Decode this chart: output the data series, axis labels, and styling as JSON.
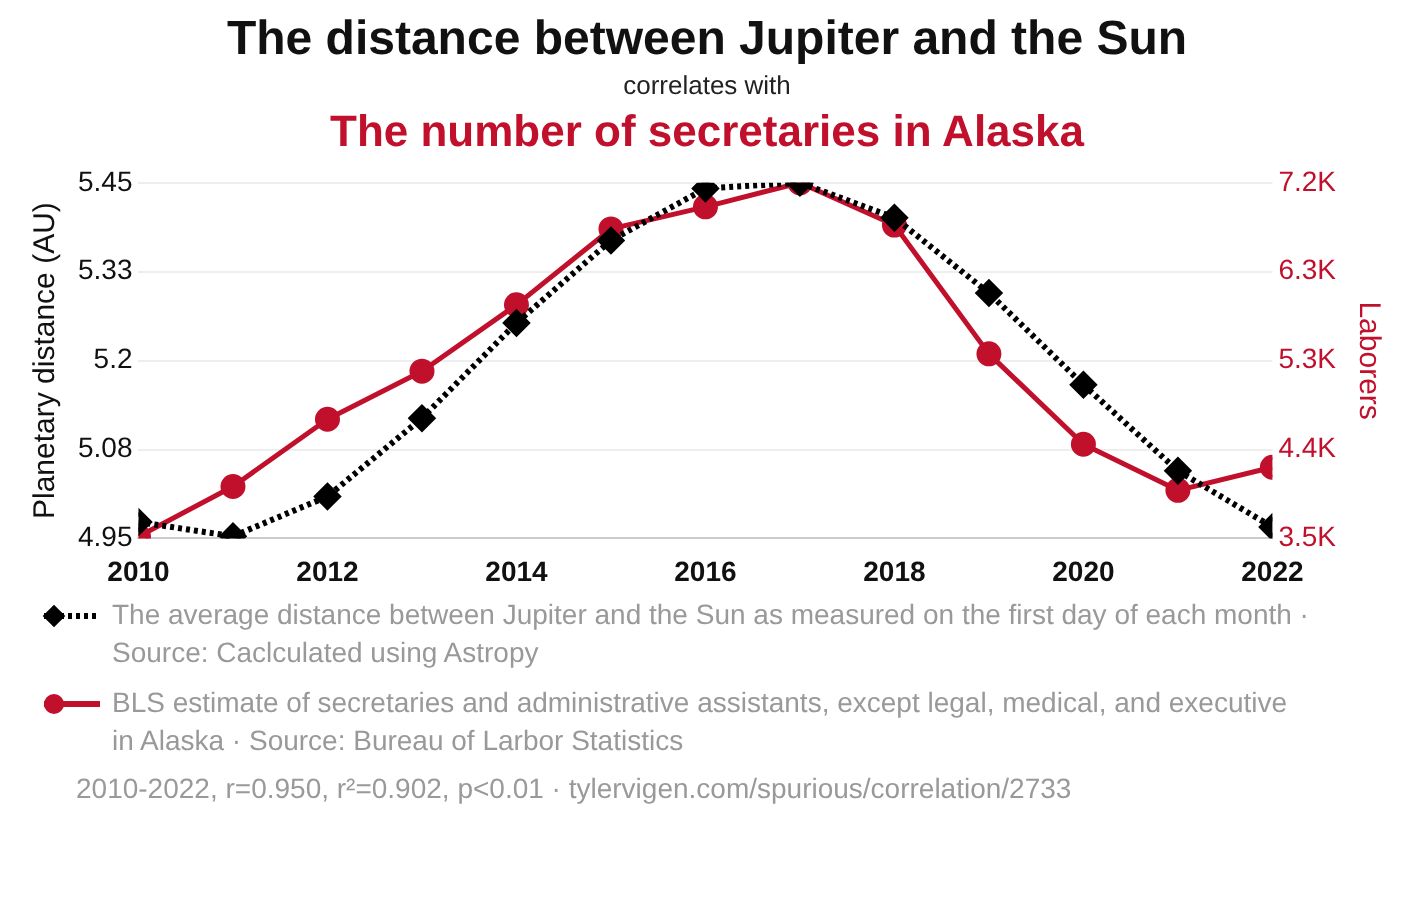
{
  "chart_data": {
    "type": "line",
    "title": "The distance between Jupiter and the Sun",
    "subtitle": "correlates with",
    "ylabel": "Planetary distance (AU)",
    "y2label": "Laborers",
    "x": [
      2010,
      2011,
      2012,
      2013,
      2014,
      2015,
      2016,
      2017,
      2018,
      2019,
      2020,
      2021,
      2022
    ],
    "xlim": [
      2010,
      2022
    ],
    "xticks": [
      2010,
      2012,
      2014,
      2016,
      2018,
      2020,
      2022
    ],
    "ylim": [
      4.95,
      5.45
    ],
    "yticks": [
      4.95,
      {
        "value": 5.075,
        "label": "5.08"
      },
      5.2,
      {
        "value": 5.325,
        "label": "5.33"
      },
      5.45
    ],
    "y2lim": [
      3500,
      7200
    ],
    "y2ticks": [
      {
        "value": 3500,
        "label": "3.5K"
      },
      {
        "value": 4425,
        "label": "4.4K"
      },
      {
        "value": 5350,
        "label": "5.3K"
      },
      {
        "value": 6275,
        "label": "6.3K"
      },
      {
        "value": 7200,
        "label": "7.2K"
      }
    ],
    "series": [
      {
        "name": "The average distance between Jupiter and the Sun as measured on the first day of each month · Source: Caclculated using Astropy",
        "color": "#000000",
        "marker": "diamond",
        "line_style": "dotted",
        "values": [
          4.973,
          4.953,
          5.009,
          5.119,
          5.253,
          5.369,
          5.442,
          5.45,
          5.401,
          5.295,
          5.166,
          5.045,
          4.966
        ]
      },
      {
        "name": "BLS estimate of secretaries and administrative assistants, except legal, medical, and executive in Alaska · Source: Bureau of Larbor Statistics",
        "color": "#c0102c",
        "marker": "circle",
        "line_style": "solid",
        "axis": "y2",
        "values": [
          3520,
          4040,
          4740,
          5240,
          5930,
          6720,
          6950,
          7200,
          6760,
          5420,
          4480,
          4000,
          4240
        ]
      }
    ],
    "grid": "y",
    "legend": "bottom",
    "annotations": [
      "The number of secretaries in Alaska",
      "2010-2022, r=0.950, r²=0.902, p<0.01 · tylervigen.com/spurious/correlation/2733"
    ]
  }
}
